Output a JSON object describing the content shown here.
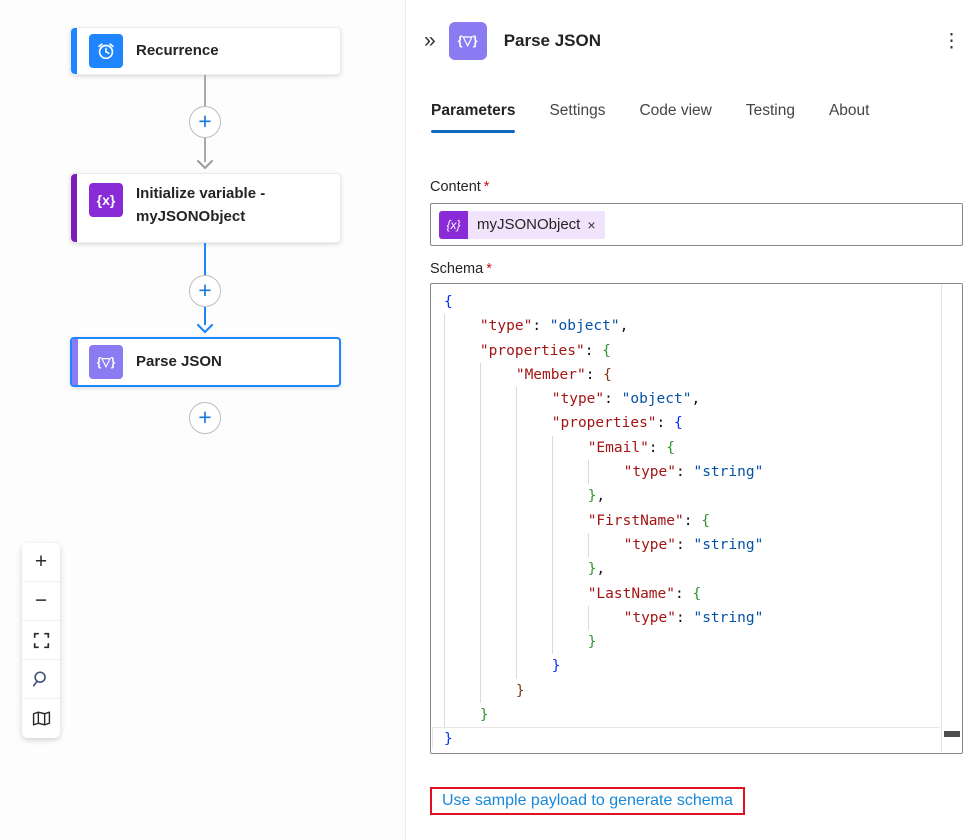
{
  "canvas": {
    "nodes": [
      {
        "title": "Recurrence"
      },
      {
        "title": "Initialize variable - myJSONObject",
        "icon_glyph": "{x}"
      },
      {
        "title": "Parse JSON",
        "icon_glyph": "{▽}"
      }
    ],
    "add_glyph": "+"
  },
  "zoom_toolbar": {
    "zoom_in_glyph": "+",
    "zoom_out_glyph": "−"
  },
  "panel": {
    "collapse_glyph": "»",
    "icon_glyph": "{▽}",
    "title": "Parse JSON",
    "menu_glyph": "⋮",
    "tabs": [
      {
        "label": "Parameters"
      },
      {
        "label": "Settings"
      },
      {
        "label": "Code view"
      },
      {
        "label": "Testing"
      },
      {
        "label": "About"
      }
    ],
    "content_field": {
      "label": "Content",
      "required_mark": "*",
      "token": {
        "icon_glyph": "{x}",
        "text": "myJSONObject",
        "remove_glyph": "×"
      }
    },
    "schema_field": {
      "label": "Schema",
      "required_mark": "*"
    },
    "link_label": "Use sample payload to generate schema"
  },
  "colors": {
    "accent_blue": "#1f85ff",
    "accent_purple_dark": "#7c1fb5",
    "variable_purple": "#8a2bd8",
    "parse_purple": "#8a7bf3",
    "tab_underline": "#0f6cbd",
    "link_blue": "#1787d8",
    "highlight_red": "#e11123",
    "code_key": "#a31515",
    "code_value": "#0451a5",
    "bracket_level1": "#0431fa",
    "bracket_level2": "#319331",
    "bracket_level3": "#7b3814"
  },
  "schema_editor": {
    "lines": [
      {
        "indent": 0,
        "segs": [
          [
            "b1",
            "{"
          ]
        ]
      },
      {
        "indent": 1,
        "segs": [
          [
            "k",
            "\"type\""
          ],
          [
            "p",
            ": "
          ],
          [
            "v",
            "\"object\""
          ],
          [
            "p",
            ","
          ]
        ]
      },
      {
        "indent": 1,
        "segs": [
          [
            "k",
            "\"properties\""
          ],
          [
            "p",
            ": "
          ],
          [
            "b2",
            "{"
          ]
        ]
      },
      {
        "indent": 2,
        "segs": [
          [
            "k",
            "\"Member\""
          ],
          [
            "p",
            ": "
          ],
          [
            "b3",
            "{"
          ]
        ]
      },
      {
        "indent": 3,
        "segs": [
          [
            "k",
            "\"type\""
          ],
          [
            "p",
            ": "
          ],
          [
            "v",
            "\"object\""
          ],
          [
            "p",
            ","
          ]
        ]
      },
      {
        "indent": 3,
        "segs": [
          [
            "k",
            "\"properties\""
          ],
          [
            "p",
            ": "
          ],
          [
            "b1",
            "{"
          ]
        ]
      },
      {
        "indent": 4,
        "segs": [
          [
            "k",
            "\"Email\""
          ],
          [
            "p",
            ": "
          ],
          [
            "b2",
            "{"
          ]
        ]
      },
      {
        "indent": 5,
        "segs": [
          [
            "k",
            "\"type\""
          ],
          [
            "p",
            ": "
          ],
          [
            "v",
            "\"string\""
          ]
        ]
      },
      {
        "indent": 4,
        "segs": [
          [
            "b2",
            "}"
          ],
          [
            "p",
            ","
          ]
        ]
      },
      {
        "indent": 4,
        "segs": [
          [
            "k",
            "\"FirstName\""
          ],
          [
            "p",
            ": "
          ],
          [
            "b2",
            "{"
          ]
        ]
      },
      {
        "indent": 5,
        "segs": [
          [
            "k",
            "\"type\""
          ],
          [
            "p",
            ": "
          ],
          [
            "v",
            "\"string\""
          ]
        ]
      },
      {
        "indent": 4,
        "segs": [
          [
            "b2",
            "}"
          ],
          [
            "p",
            ","
          ]
        ]
      },
      {
        "indent": 4,
        "segs": [
          [
            "k",
            "\"LastName\""
          ],
          [
            "p",
            ": "
          ],
          [
            "b2",
            "{"
          ]
        ]
      },
      {
        "indent": 5,
        "segs": [
          [
            "k",
            "\"type\""
          ],
          [
            "p",
            ": "
          ],
          [
            "v",
            "\"string\""
          ]
        ]
      },
      {
        "indent": 4,
        "segs": [
          [
            "b2",
            "}"
          ]
        ]
      },
      {
        "indent": 3,
        "segs": [
          [
            "b1",
            "}"
          ]
        ]
      },
      {
        "indent": 2,
        "segs": [
          [
            "b3",
            "}"
          ]
        ]
      },
      {
        "indent": 1,
        "segs": [
          [
            "b2",
            "}"
          ]
        ]
      },
      {
        "indent": 0,
        "segs": [
          [
            "b1",
            "}"
          ]
        ],
        "current": true
      }
    ]
  }
}
